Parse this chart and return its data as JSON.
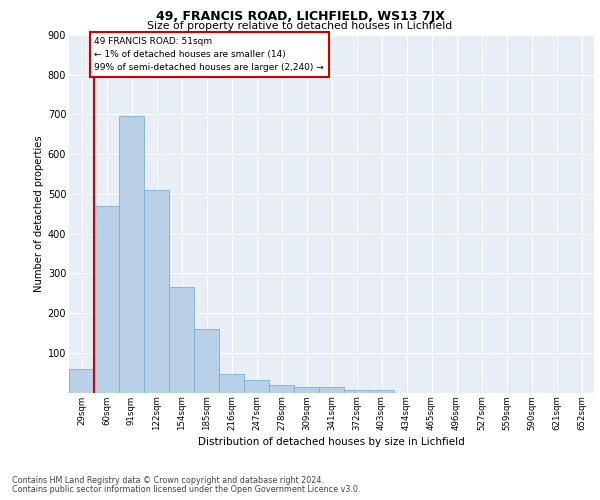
{
  "title1": "49, FRANCIS ROAD, LICHFIELD, WS13 7JX",
  "title2": "Size of property relative to detached houses in Lichfield",
  "xlabel": "Distribution of detached houses by size in Lichfield",
  "ylabel": "Number of detached properties",
  "bar_color": "#b8d0e8",
  "bar_edge_color": "#7aafd4",
  "categories": [
    "29sqm",
    "60sqm",
    "91sqm",
    "122sqm",
    "154sqm",
    "185sqm",
    "216sqm",
    "247sqm",
    "278sqm",
    "309sqm",
    "341sqm",
    "372sqm",
    "403sqm",
    "434sqm",
    "465sqm",
    "496sqm",
    "527sqm",
    "559sqm",
    "590sqm",
    "621sqm",
    "652sqm"
  ],
  "values": [
    60,
    470,
    695,
    510,
    265,
    160,
    47,
    32,
    20,
    15,
    15,
    7,
    7,
    0,
    0,
    0,
    0,
    0,
    0,
    0,
    0
  ],
  "ylim": [
    0,
    900
  ],
  "yticks": [
    0,
    100,
    200,
    300,
    400,
    500,
    600,
    700,
    800,
    900
  ],
  "marker_color": "#cc0000",
  "annotation_title": "49 FRANCIS ROAD: 51sqm",
  "annotation_line1": "← 1% of detached houses are smaller (14)",
  "annotation_line2": "99% of semi-detached houses are larger (2,240) →",
  "footer1": "Contains HM Land Registry data © Crown copyright and database right 2024.",
  "footer2": "Contains public sector information licensed under the Open Government Licence v3.0.",
  "plot_bg": "#e8eef5"
}
